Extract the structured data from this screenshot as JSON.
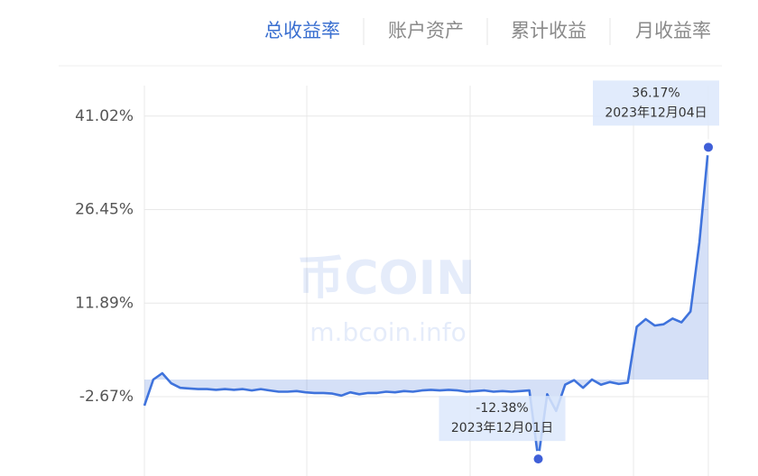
{
  "tabs": [
    "总收益率",
    "账户资产",
    "累计收益",
    "月收益率"
  ],
  "chart_data": {
    "type": "area",
    "watermark": [
      "币COIN",
      "m.bcoin.info"
    ],
    "series": [
      {
        "color": "#3f73dc",
        "values": [
          -4.07,
          0.0,
          0.98,
          -0.6,
          -1.3,
          -1.4,
          -1.5,
          -1.5,
          -1.6,
          -1.5,
          -1.6,
          -1.5,
          -1.7,
          -1.5,
          -1.7,
          -1.9,
          -1.9,
          -1.8,
          -2.0,
          -2.1,
          -2.1,
          -2.2,
          -2.5,
          -2.0,
          -2.3,
          -2.1,
          -2.1,
          -1.9,
          -2.0,
          -1.8,
          -1.9,
          -1.7,
          -1.6,
          -1.7,
          -1.6,
          -1.7,
          -1.9,
          -1.8,
          -1.7,
          -1.9,
          -1.8,
          -1.9,
          -1.8,
          -1.7,
          -12.38,
          -2.3,
          -4.9,
          -0.8,
          -0.1,
          -1.3,
          0.0,
          -0.8,
          -0.4,
          -0.7,
          -0.5,
          8.2,
          9.4,
          8.4,
          8.6,
          9.5,
          8.9,
          10.6,
          21.4,
          36.17
        ]
      }
    ],
    "ylim": [
      -15,
      46
    ],
    "yticks": [
      {
        "value": 41.02,
        "label": "41.02%"
      },
      {
        "value": 26.45,
        "label": "26.45%"
      },
      {
        "value": 11.89,
        "label": "11.89%"
      },
      {
        "value": -2.67,
        "label": "-2.67%"
      }
    ],
    "grid": true,
    "annotations": [
      {
        "value": -12.38,
        "label": "-12.38%",
        "date": "2023年12月01日"
      },
      {
        "value": 36.17,
        "label": "36.17%",
        "date": "2023年12月04日"
      }
    ]
  }
}
